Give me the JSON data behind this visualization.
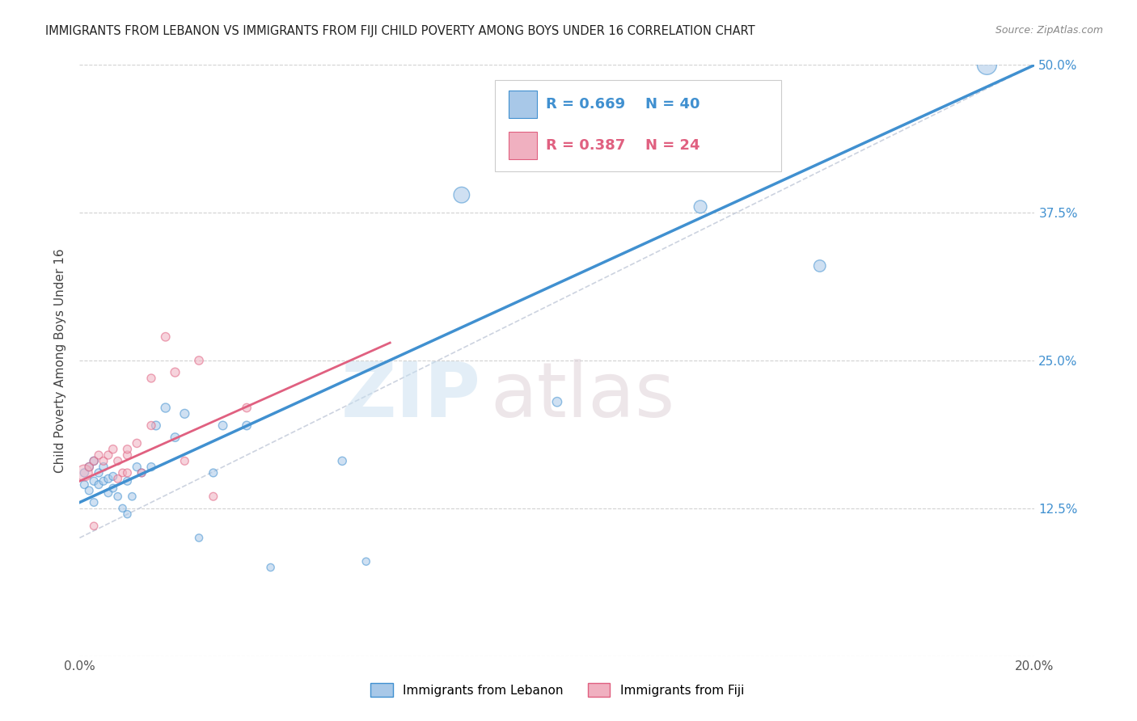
{
  "title": "IMMIGRANTS FROM LEBANON VS IMMIGRANTS FROM FIJI CHILD POVERTY AMONG BOYS UNDER 16 CORRELATION CHART",
  "source": "Source: ZipAtlas.com",
  "ylabel": "Child Poverty Among Boys Under 16",
  "xlim": [
    0.0,
    0.2
  ],
  "ylim": [
    0.0,
    0.5
  ],
  "r1": 0.669,
  "n1": 40,
  "r2": 0.387,
  "n2": 24,
  "color_lebanon": "#a8c8e8",
  "color_fiji": "#f0b0c0",
  "color_lebanon_line": "#4090d0",
  "color_fiji_line": "#e06080",
  "color_dashed": "#c0c8d8",
  "watermark_zip": "ZIP",
  "watermark_atlas": "atlas",
  "legend_label1": "Immigrants from Lebanon",
  "legend_label2": "Immigrants from Fiji",
  "lebanon_x": [
    0.001,
    0.001,
    0.002,
    0.002,
    0.003,
    0.003,
    0.003,
    0.004,
    0.004,
    0.005,
    0.005,
    0.006,
    0.006,
    0.007,
    0.007,
    0.008,
    0.009,
    0.01,
    0.01,
    0.011,
    0.012,
    0.013,
    0.015,
    0.016,
    0.018,
    0.02,
    0.022,
    0.025,
    0.028,
    0.03,
    0.035,
    0.04,
    0.055,
    0.08,
    0.1,
    0.11,
    0.13,
    0.155,
    0.06,
    0.19
  ],
  "lebanon_y": [
    0.155,
    0.145,
    0.16,
    0.14,
    0.165,
    0.148,
    0.13,
    0.155,
    0.145,
    0.16,
    0.148,
    0.15,
    0.138,
    0.152,
    0.142,
    0.135,
    0.125,
    0.148,
    0.12,
    0.135,
    0.16,
    0.155,
    0.16,
    0.195,
    0.21,
    0.185,
    0.205,
    0.1,
    0.155,
    0.195,
    0.195,
    0.075,
    0.165,
    0.39,
    0.215,
    0.46,
    0.38,
    0.33,
    0.08,
    0.5
  ],
  "fiji_x": [
    0.001,
    0.002,
    0.003,
    0.004,
    0.005,
    0.006,
    0.007,
    0.008,
    0.009,
    0.01,
    0.012,
    0.013,
    0.015,
    0.018,
    0.022,
    0.025,
    0.028,
    0.01,
    0.035,
    0.015,
    0.003,
    0.02,
    0.01,
    0.008
  ],
  "fiji_y": [
    0.155,
    0.16,
    0.165,
    0.17,
    0.165,
    0.17,
    0.175,
    0.165,
    0.155,
    0.17,
    0.18,
    0.155,
    0.235,
    0.27,
    0.165,
    0.25,
    0.135,
    0.155,
    0.21,
    0.195,
    0.11,
    0.24,
    0.175,
    0.15
  ],
  "lebanon_sizes": [
    55,
    50,
    55,
    50,
    55,
    52,
    48,
    52,
    50,
    55,
    50,
    52,
    48,
    50,
    48,
    46,
    44,
    50,
    44,
    46,
    52,
    50,
    52,
    60,
    64,
    58,
    62,
    44,
    50,
    58,
    58,
    44,
    54,
    200,
    68,
    180,
    130,
    110,
    44,
    300
  ],
  "fiji_sizes": [
    200,
    55,
    52,
    50,
    50,
    52,
    54,
    50,
    48,
    52,
    54,
    48,
    52,
    58,
    50,
    56,
    50,
    50,
    56,
    52,
    46,
    62,
    52,
    48
  ]
}
